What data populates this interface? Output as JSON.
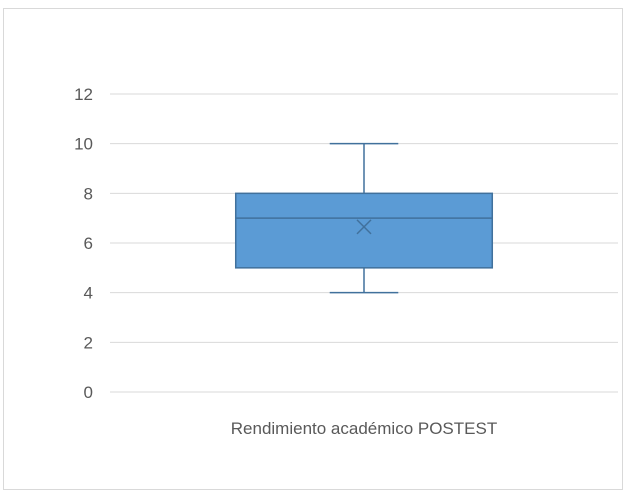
{
  "chart_data": {
    "type": "box",
    "categories": [
      "Rendimiento académico POSTEST"
    ],
    "series": [
      {
        "min": 4,
        "q1": 5,
        "median": 7,
        "q3": 8,
        "max": 10,
        "mean": 6.65
      }
    ],
    "yticks": [
      0,
      2,
      4,
      6,
      8,
      10,
      12
    ],
    "ylim": [
      0,
      12
    ],
    "grid": true,
    "colors": {
      "box_fill": "#5b9bd5",
      "box_stroke": "#41719c",
      "grid": "#d9d9d9",
      "text": "#595959"
    }
  }
}
